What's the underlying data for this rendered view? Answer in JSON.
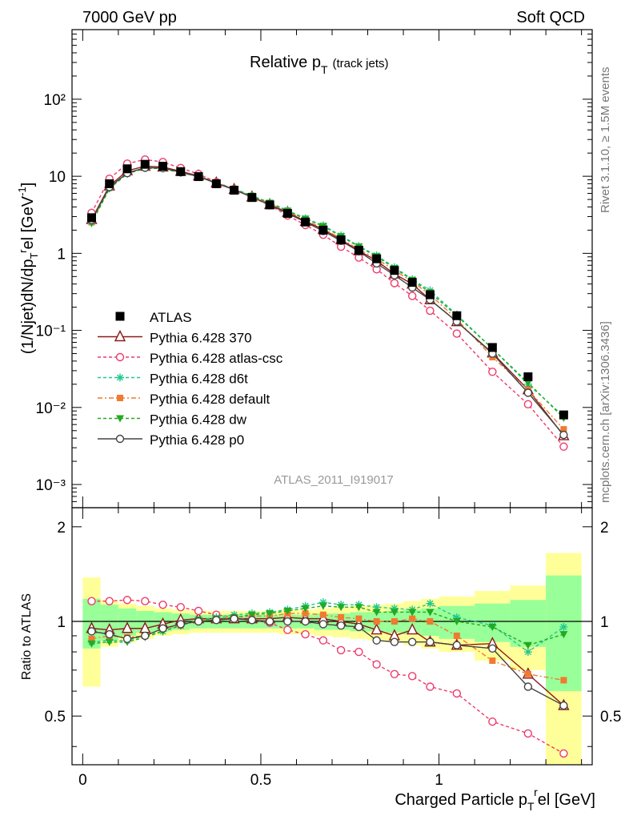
{
  "header": {
    "left": "7000 GeV pp",
    "right": "Soft QCD"
  },
  "side_text": {
    "rivet": "Rivet 3.1.10, ≥ 1.5M events",
    "source": "mcplots.cern.ch [arXiv:1306.3436]"
  },
  "analysis_id": "ATLAS_2011_I919017",
  "chart_data": [
    {
      "type": "line",
      "title": "Relative p_T (track jets)",
      "title_main": "Relative p",
      "title_sub": "T",
      "title_note": "(track jets)",
      "ylabel": "(1/Njet)dN/dp_T^rel [GeV^-1]",
      "xlabel": "Charged Particle p_T^rel [GeV]",
      "yscale": "log",
      "ylim": [
        0.0005,
        800
      ],
      "xlim": [
        -0.03,
        1.43
      ],
      "yticks": [
        "10⁻³",
        "10⁻²",
        "10⁻¹",
        "1",
        "10",
        "10²"
      ],
      "legend_position": "middle-left",
      "x": [
        0.025,
        0.075,
        0.125,
        0.175,
        0.225,
        0.275,
        0.325,
        0.375,
        0.425,
        0.475,
        0.525,
        0.575,
        0.625,
        0.675,
        0.725,
        0.775,
        0.825,
        0.875,
        0.925,
        0.975,
        1.05,
        1.15,
        1.25,
        1.35
      ],
      "series": [
        {
          "name": "ATLAS",
          "color": "#000000",
          "marker": "square",
          "dash": "none",
          "values": [
            2.9,
            8.0,
            12.5,
            14.3,
            13.5,
            11.5,
            9.9,
            8.0,
            6.6,
            5.3,
            4.25,
            3.3,
            2.55,
            2.0,
            1.5,
            1.1,
            0.85,
            0.6,
            0.42,
            0.29,
            0.155,
            0.06,
            0.025,
            0.008
          ]
        },
        {
          "name": "Pythia 6.428 370",
          "color": "#8b1a1a",
          "marker": "triangle-open",
          "dash": "none",
          "values": [
            2.75,
            7.5,
            11.8,
            13.5,
            13.2,
            11.6,
            10.1,
            8.2,
            6.75,
            5.4,
            4.3,
            3.4,
            2.6,
            2.05,
            1.5,
            1.08,
            0.8,
            0.54,
            0.4,
            0.25,
            0.13,
            0.051,
            0.017,
            0.0043
          ]
        },
        {
          "name": "Pythia 6.428 atlas-csc",
          "color": "#ee3a6a",
          "marker": "circle-open",
          "dash": "4,3",
          "values": [
            3.35,
            9.3,
            14.6,
            16.5,
            15.3,
            12.8,
            10.7,
            8.4,
            6.8,
            5.35,
            4.2,
            3.1,
            2.33,
            1.74,
            1.22,
            0.88,
            0.62,
            0.41,
            0.28,
            0.18,
            0.091,
            0.029,
            0.011,
            0.0031
          ]
        },
        {
          "name": "Pythia 6.428 d6t",
          "color": "#20c890",
          "marker": "star",
          "dash": "4,3",
          "values": [
            2.5,
            7.0,
            10.8,
            12.8,
            12.6,
            11.1,
            10.0,
            8.2,
            6.9,
            5.6,
            4.55,
            3.6,
            2.85,
            2.3,
            1.7,
            1.24,
            0.94,
            0.66,
            0.46,
            0.33,
            0.16,
            0.058,
            0.02,
            0.0077
          ]
        },
        {
          "name": "Pythia 6.428 default",
          "color": "#f07a30",
          "marker": "square-filled",
          "dash": "6,3,2,3",
          "values": [
            2.55,
            7.2,
            11.1,
            12.9,
            12.8,
            11.2,
            10.0,
            8.2,
            6.8,
            5.5,
            4.4,
            3.5,
            2.7,
            2.1,
            1.55,
            1.12,
            0.85,
            0.6,
            0.43,
            0.29,
            0.14,
            0.045,
            0.017,
            0.0052
          ]
        },
        {
          "name": "Pythia 6.428 dw",
          "color": "#22aa22",
          "marker": "triangle-down-filled",
          "dash": "4,3",
          "values": [
            2.45,
            6.9,
            10.8,
            12.7,
            12.6,
            11.1,
            10.0,
            8.2,
            6.8,
            5.55,
            4.5,
            3.55,
            2.8,
            2.25,
            1.66,
            1.22,
            0.91,
            0.64,
            0.45,
            0.31,
            0.155,
            0.058,
            0.021,
            0.0073
          ]
        },
        {
          "name": "Pythia 6.428 p0",
          "color": "#444444",
          "marker": "circle-open",
          "dash": "none",
          "values": [
            2.7,
            7.25,
            11.0,
            12.9,
            12.8,
            11.3,
            9.9,
            8.1,
            6.7,
            5.35,
            4.25,
            3.3,
            2.55,
            1.95,
            1.45,
            1.06,
            0.74,
            0.52,
            0.36,
            0.25,
            0.13,
            0.05,
            0.0155,
            0.0044
          ]
        }
      ]
    },
    {
      "type": "line",
      "title": "",
      "ylabel": "Ratio to ATLAS",
      "xlabel": "Charged Particle p_T^rel [GeV]",
      "ylim": [
        0.35,
        2.3
      ],
      "xlim": [
        -0.03,
        1.43
      ],
      "yticks": [
        0.5,
        1,
        2
      ],
      "xticks": [
        "0",
        "0.5",
        "1"
      ],
      "reference_line": 1,
      "bands": {
        "edges": [
          0.0,
          0.05,
          0.1,
          0.15,
          0.2,
          0.25,
          0.3,
          0.35,
          0.4,
          0.45,
          0.5,
          0.55,
          0.6,
          0.65,
          0.7,
          0.75,
          0.8,
          0.85,
          0.9,
          0.95,
          1.0,
          1.1,
          1.2,
          1.3,
          1.4
        ],
        "stat_color": "#99ff99",
        "syst_color": "#ffff99",
        "inner": [
          0.18,
          0.13,
          0.1,
          0.08,
          0.07,
          0.06,
          0.05,
          0.05,
          0.05,
          0.05,
          0.05,
          0.05,
          0.05,
          0.06,
          0.06,
          0.07,
          0.07,
          0.08,
          0.09,
          0.1,
          0.12,
          0.14,
          0.17,
          0.4
        ],
        "outer": [
          0.38,
          0.17,
          0.14,
          0.12,
          0.1,
          0.09,
          0.08,
          0.08,
          0.08,
          0.08,
          0.08,
          0.09,
          0.09,
          0.1,
          0.11,
          0.12,
          0.13,
          0.14,
          0.16,
          0.18,
          0.2,
          0.25,
          0.3,
          0.65
        ]
      },
      "series": [
        {
          "name": "Pythia 6.428 370",
          "values": [
            0.95,
            0.94,
            0.95,
            0.95,
            0.98,
            1.01,
            1.02,
            1.02,
            1.02,
            1.02,
            1.02,
            1.03,
            1.02,
            1.02,
            1.0,
            0.98,
            0.94,
            0.9,
            0.94,
            0.86,
            0.84,
            0.85,
            0.68,
            0.54
          ]
        },
        {
          "name": "Pythia 6.428 atlas-csc",
          "values": [
            1.16,
            1.16,
            1.17,
            1.16,
            1.13,
            1.11,
            1.08,
            1.05,
            1.03,
            1.01,
            0.99,
            0.94,
            0.91,
            0.87,
            0.81,
            0.8,
            0.73,
            0.68,
            0.67,
            0.62,
            0.59,
            0.48,
            0.44,
            0.38
          ]
        },
        {
          "name": "Pythia 6.428 d6t",
          "values": [
            0.86,
            0.87,
            0.87,
            0.9,
            0.93,
            0.97,
            1.01,
            1.03,
            1.05,
            1.06,
            1.07,
            1.09,
            1.12,
            1.15,
            1.13,
            1.13,
            1.11,
            1.1,
            1.09,
            1.14,
            1.03,
            0.97,
            0.8,
            0.96
          ]
        },
        {
          "name": "Pythia 6.428 default",
          "values": [
            0.88,
            0.9,
            0.89,
            0.9,
            0.95,
            0.97,
            1.01,
            1.02,
            1.03,
            1.04,
            1.04,
            1.06,
            1.06,
            1.05,
            1.03,
            1.02,
            1.0,
            1.0,
            1.02,
            1.0,
            0.9,
            0.75,
            0.68,
            0.65
          ]
        },
        {
          "name": "Pythia 6.428 dw",
          "values": [
            0.85,
            0.86,
            0.86,
            0.89,
            0.93,
            0.97,
            1.01,
            1.02,
            1.03,
            1.05,
            1.06,
            1.08,
            1.1,
            1.12,
            1.11,
            1.11,
            1.07,
            1.07,
            1.07,
            1.07,
            1.0,
            0.96,
            0.84,
            0.91
          ]
        },
        {
          "name": "Pythia 6.428 p0",
          "values": [
            0.93,
            0.91,
            0.88,
            0.9,
            0.95,
            0.98,
            1.0,
            1.01,
            1.02,
            1.01,
            1.0,
            1.0,
            1.0,
            0.98,
            0.97,
            0.96,
            0.87,
            0.86,
            0.86,
            0.86,
            0.84,
            0.82,
            0.62,
            0.54
          ]
        }
      ]
    }
  ]
}
